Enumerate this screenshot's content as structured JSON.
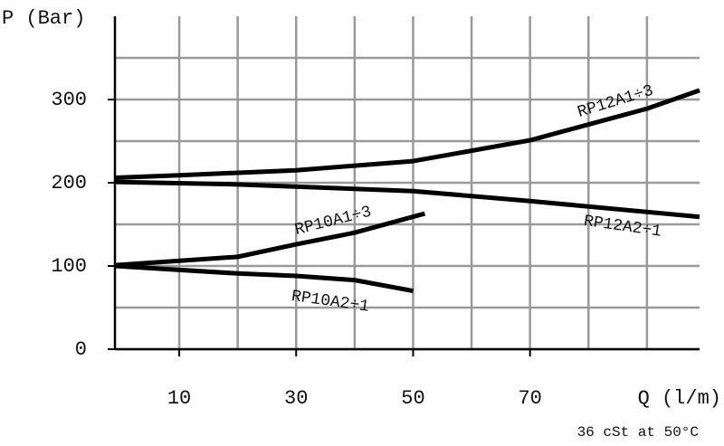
{
  "chart_data": {
    "type": "line",
    "y_label": "P (Bar)",
    "x_label": "Q (l/m)",
    "subtitle": "36 cSt at 50°C",
    "xlim": [
      -1,
      99
    ],
    "ylim": [
      0,
      400
    ],
    "xticks": [
      10,
      30,
      50,
      70
    ],
    "xgrid": [
      20,
      40,
      60,
      80,
      90
    ],
    "yticks": [
      0,
      100,
      200,
      300
    ],
    "ygrid": [
      50,
      150,
      250,
      350
    ],
    "grid": true,
    "series": [
      {
        "name": "RP12A1÷3",
        "color": "#000000",
        "x": [
          -1,
          10,
          30,
          50,
          70,
          90,
          99
        ],
        "values": [
          206,
          209,
          215,
          226,
          251,
          289,
          311
        ]
      },
      {
        "name": "RP12A2÷1",
        "color": "#000000",
        "x": [
          -1,
          20,
          50,
          70,
          99
        ],
        "values": [
          201,
          198,
          190,
          178,
          159
        ]
      },
      {
        "name": "RP10A1÷3",
        "color": "#000000",
        "x": [
          -1,
          20,
          30,
          40,
          52
        ],
        "values": [
          101,
          111,
          126,
          140,
          163
        ]
      },
      {
        "name": "RP10A2÷1",
        "color": "#000000",
        "x": [
          -1,
          20,
          30,
          40,
          50
        ],
        "values": [
          100,
          91,
          88,
          83,
          70
        ]
      }
    ]
  }
}
